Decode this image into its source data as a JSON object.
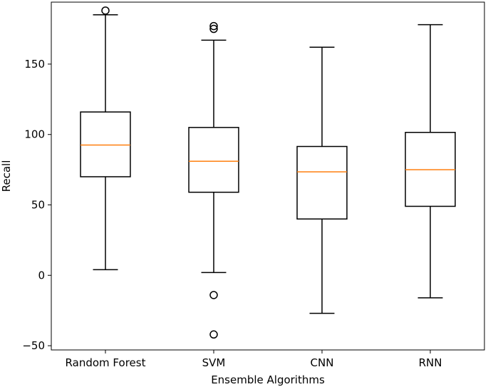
{
  "chart_data": {
    "type": "box",
    "title": "",
    "xlabel": "Ensemble Algorithms",
    "ylabel": "Recall",
    "ylim": [
      -53,
      194
    ],
    "yticks": [
      -50,
      0,
      50,
      100,
      150
    ],
    "grid": false,
    "median_color": "#ff7f0e",
    "box_color": "#000000",
    "categories": [
      "Random Forest",
      "SVM",
      "CNN",
      "RNN"
    ],
    "boxes": [
      {
        "label": "Random Forest",
        "whisker_low": 4,
        "q1": 70,
        "median": 92.5,
        "q3": 116,
        "whisker_high": 185,
        "outliers": [
          188
        ]
      },
      {
        "label": "SVM",
        "whisker_low": 2,
        "q1": 59,
        "median": 81,
        "q3": 105,
        "whisker_high": 167,
        "outliers": [
          175,
          177,
          -14,
          -42
        ]
      },
      {
        "label": "CNN",
        "whisker_low": -27,
        "q1": 40,
        "median": 73.5,
        "q3": 91.5,
        "whisker_high": 162,
        "outliers": []
      },
      {
        "label": "RNN",
        "whisker_low": -16,
        "q1": 49,
        "median": 75,
        "q3": 101.5,
        "whisker_high": 178,
        "outliers": []
      }
    ]
  }
}
